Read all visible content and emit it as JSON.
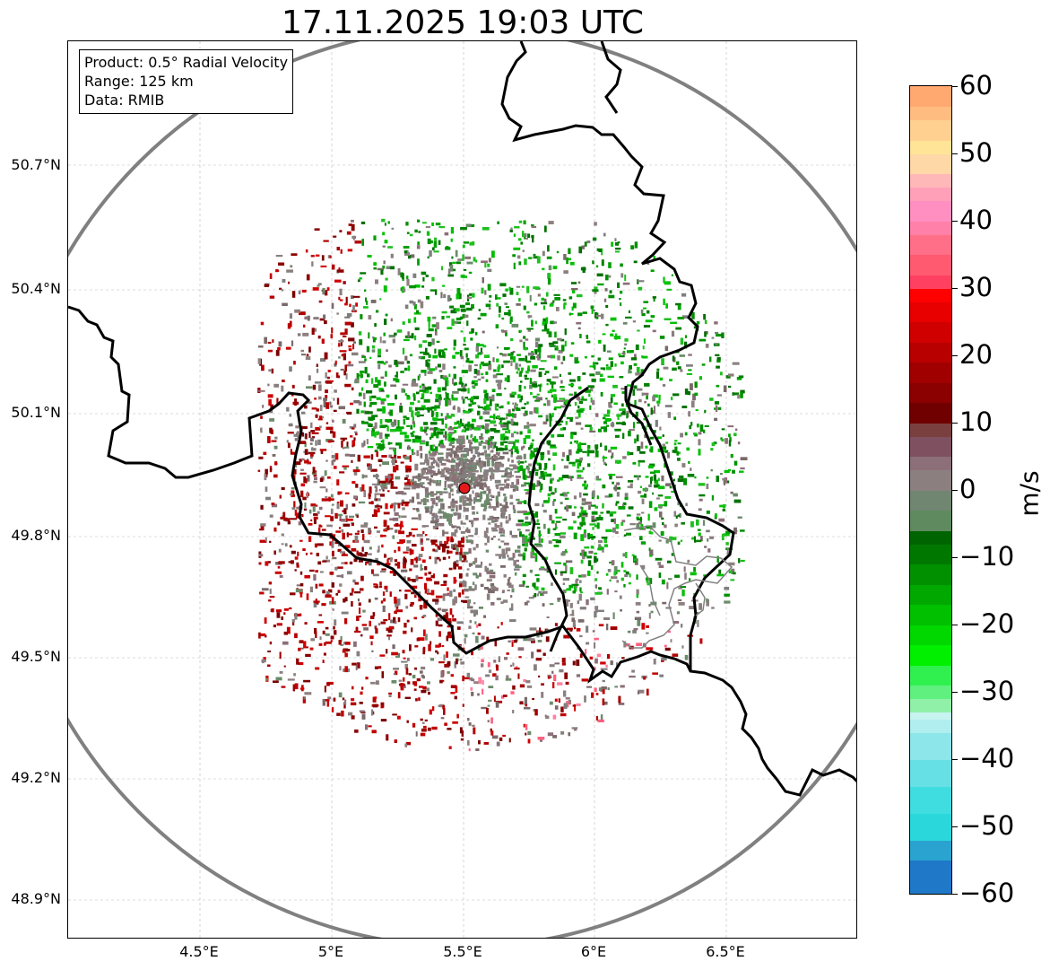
{
  "title": "17.11.2025 19:03 UTC",
  "info_box": {
    "product": "Product: 0.5° Radial Velocity",
    "range": "Range: 125 km",
    "data": "Data: RMIB"
  },
  "axes": {
    "lat_labels": [
      "50.7°N",
      "50.4°N",
      "50.1°N",
      "49.8°N",
      "49.5°N",
      "49.2°N",
      "48.9°N"
    ],
    "lon_labels": [
      "4.5°E",
      "5°E",
      "5.5°E",
      "6°E",
      "6.5°E"
    ]
  },
  "colorbar": {
    "unit": "m/s",
    "min": -60,
    "max": 60,
    "tick_labels": [
      "60",
      "50",
      "40",
      "30",
      "20",
      "10",
      "0",
      "−10",
      "−20",
      "−30",
      "−40",
      "−50",
      "−60"
    ]
  },
  "radar": {
    "station_marker_color": "#e31a1c",
    "range_ring_color": "#808080"
  },
  "colors": {
    "outbound": "#b30000",
    "inbound": "#008000",
    "near_zero": "#8a7f7f"
  }
}
